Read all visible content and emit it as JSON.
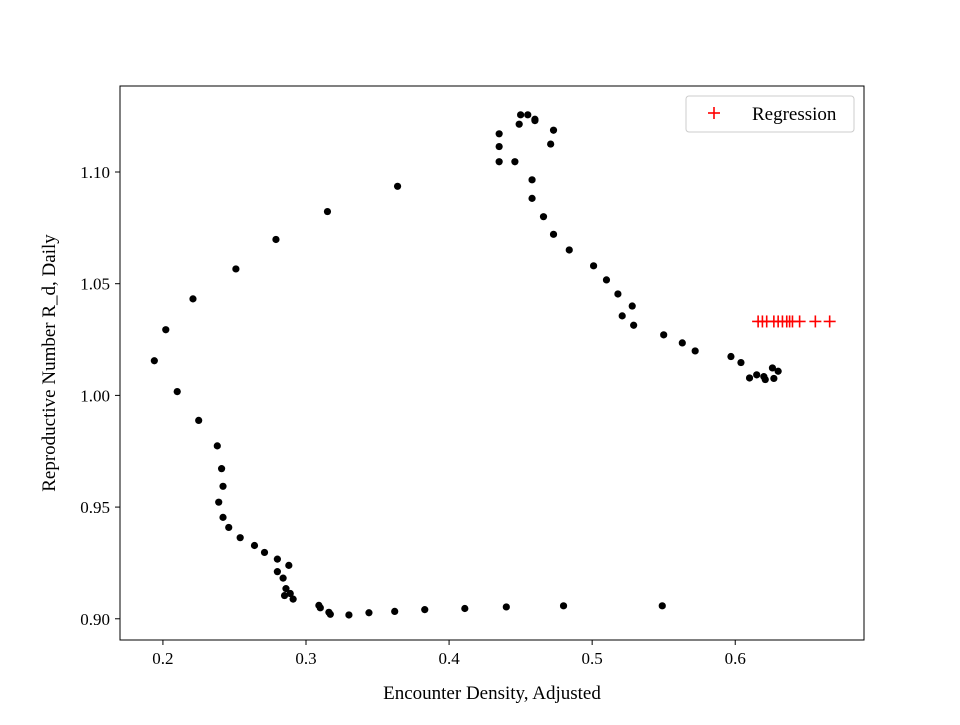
{
  "chart_data": {
    "type": "scatter",
    "title": "",
    "xlabel": "Encounter Density, Adjusted",
    "ylabel": "Reproductive Number R_d, Daily",
    "xlim": [
      0.17,
      0.69
    ],
    "ylim": [
      0.8905,
      1.1385
    ],
    "x_ticks": [
      {
        "value": 0.2,
        "label": "0.2"
      },
      {
        "value": 0.3,
        "label": "0.3"
      },
      {
        "value": 0.4,
        "label": "0.4"
      },
      {
        "value": 0.5,
        "label": "0.5"
      },
      {
        "value": 0.6,
        "label": "0.6"
      }
    ],
    "y_ticks": [
      {
        "value": 0.9,
        "label": "0.90"
      },
      {
        "value": 0.95,
        "label": "0.95"
      },
      {
        "value": 1.0,
        "label": "1.00"
      },
      {
        "value": 1.05,
        "label": "1.05"
      },
      {
        "value": 1.1,
        "label": "1.10"
      }
    ],
    "grid": false,
    "legend": {
      "placement": "top-right",
      "entries": [
        "Regression"
      ]
    },
    "series": [
      {
        "marker": "circle",
        "color": "#000000",
        "points": [
          [
            0.549,
            0.9058
          ],
          [
            0.48,
            0.9058
          ],
          [
            0.44,
            0.9053
          ],
          [
            0.411,
            0.9046
          ],
          [
            0.383,
            0.9041
          ],
          [
            0.362,
            0.9033
          ],
          [
            0.344,
            0.9027
          ],
          [
            0.33,
            0.9017
          ],
          [
            0.317,
            0.902
          ],
          [
            0.316,
            0.9029
          ],
          [
            0.31,
            0.9049
          ],
          [
            0.309,
            0.906
          ],
          [
            0.291,
            0.9088
          ],
          [
            0.285,
            0.9104
          ],
          [
            0.289,
            0.9113
          ],
          [
            0.286,
            0.9135
          ],
          [
            0.284,
            0.9182
          ],
          [
            0.28,
            0.9211
          ],
          [
            0.288,
            0.9239
          ],
          [
            0.28,
            0.9267
          ],
          [
            0.271,
            0.9297
          ],
          [
            0.264,
            0.9328
          ],
          [
            0.254,
            0.9363
          ],
          [
            0.246,
            0.9409
          ],
          [
            0.242,
            0.9454
          ],
          [
            0.239,
            0.9522
          ],
          [
            0.242,
            0.9593
          ],
          [
            0.241,
            0.9672
          ],
          [
            0.238,
            0.9774
          ],
          [
            0.225,
            0.9888
          ],
          [
            0.21,
            1.0017
          ],
          [
            0.194,
            1.0155
          ],
          [
            0.202,
            1.0294
          ],
          [
            0.221,
            1.0432
          ],
          [
            0.251,
            1.0566
          ],
          [
            0.279,
            1.0698
          ],
          [
            0.315,
            1.0823
          ],
          [
            0.364,
            1.0936
          ],
          [
            0.435,
            1.1046
          ],
          [
            0.446,
            1.1046
          ],
          [
            0.435,
            1.1114
          ],
          [
            0.435,
            1.1171
          ],
          [
            0.449,
            1.1214
          ],
          [
            0.45,
            1.1256
          ],
          [
            0.455,
            1.1256
          ],
          [
            0.46,
            1.1236
          ],
          [
            0.46,
            1.123
          ],
          [
            0.473,
            1.1187
          ],
          [
            0.471,
            1.1125
          ],
          [
            0.458,
            1.0965
          ],
          [
            0.458,
            1.0882
          ],
          [
            0.466,
            1.08
          ],
          [
            0.473,
            1.0721
          ],
          [
            0.484,
            1.0651
          ],
          [
            0.501,
            1.058
          ],
          [
            0.51,
            1.0517
          ],
          [
            0.518,
            1.0454
          ],
          [
            0.528,
            1.04
          ],
          [
            0.521,
            1.0356
          ],
          [
            0.529,
            1.0314
          ],
          [
            0.55,
            1.0271
          ],
          [
            0.563,
            1.0235
          ],
          [
            0.572,
            1.0199
          ],
          [
            0.597,
            1.0174
          ],
          [
            0.604,
            1.0147
          ],
          [
            0.626,
            1.0123
          ],
          [
            0.63,
            1.0108
          ],
          [
            0.615,
            1.0092
          ],
          [
            0.62,
            1.0084
          ],
          [
            0.61,
            1.0078
          ],
          [
            0.627,
            1.0076
          ],
          [
            0.621,
            1.0071
          ]
        ]
      },
      {
        "name": "Regression",
        "marker": "plus",
        "color": "#ff0000",
        "points": [
          [
            0.616,
            1.0331
          ],
          [
            0.619,
            1.0331
          ],
          [
            0.622,
            1.0331
          ],
          [
            0.627,
            1.0331
          ],
          [
            0.63,
            1.0331
          ],
          [
            0.633,
            1.0331
          ],
          [
            0.636,
            1.0331
          ],
          [
            0.638,
            1.0331
          ],
          [
            0.64,
            1.0331
          ],
          [
            0.645,
            1.0331
          ],
          [
            0.656,
            1.0331
          ],
          [
            0.666,
            1.0331
          ]
        ]
      }
    ]
  }
}
